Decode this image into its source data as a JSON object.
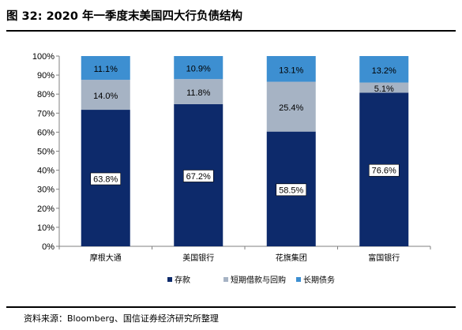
{
  "page": {
    "title": "图 32:  2020 年一季度末美国四大行负债结构",
    "source": "资料来源：Bloomberg、国信证券经济研究所整理"
  },
  "chart_data": {
    "type": "bar",
    "stacked": true,
    "categories": [
      "摩根大通",
      "美国银行",
      "花旗集团",
      "富国银行"
    ],
    "series": [
      {
        "name": "存款",
        "values": [
          63.8,
          67.2,
          58.5,
          76.6
        ],
        "labels": [
          "63.8%",
          "67.2%",
          "58.5%",
          "76.6%"
        ],
        "color": "#0d2a6b"
      },
      {
        "name": "短期借款与回购",
        "values": [
          14.0,
          11.8,
          25.4,
          5.1
        ],
        "labels": [
          "14.0%",
          "11.8%",
          "25.4%",
          "5.1%"
        ],
        "color": "#a6b3c4"
      },
      {
        "name": "长期债务",
        "values": [
          11.1,
          10.9,
          13.1,
          13.2
        ],
        "labels": [
          "11.1%",
          "10.9%",
          "13.1%",
          "13.2%"
        ],
        "color": "#3d8fd1"
      }
    ],
    "normalized_to_percent": true,
    "ylim": [
      0,
      100
    ],
    "yticks": [
      "0%",
      "10%",
      "20%",
      "30%",
      "40%",
      "50%",
      "60%",
      "70%",
      "80%",
      "90%",
      "100%"
    ],
    "grid": false,
    "legend_position": "bottom"
  }
}
